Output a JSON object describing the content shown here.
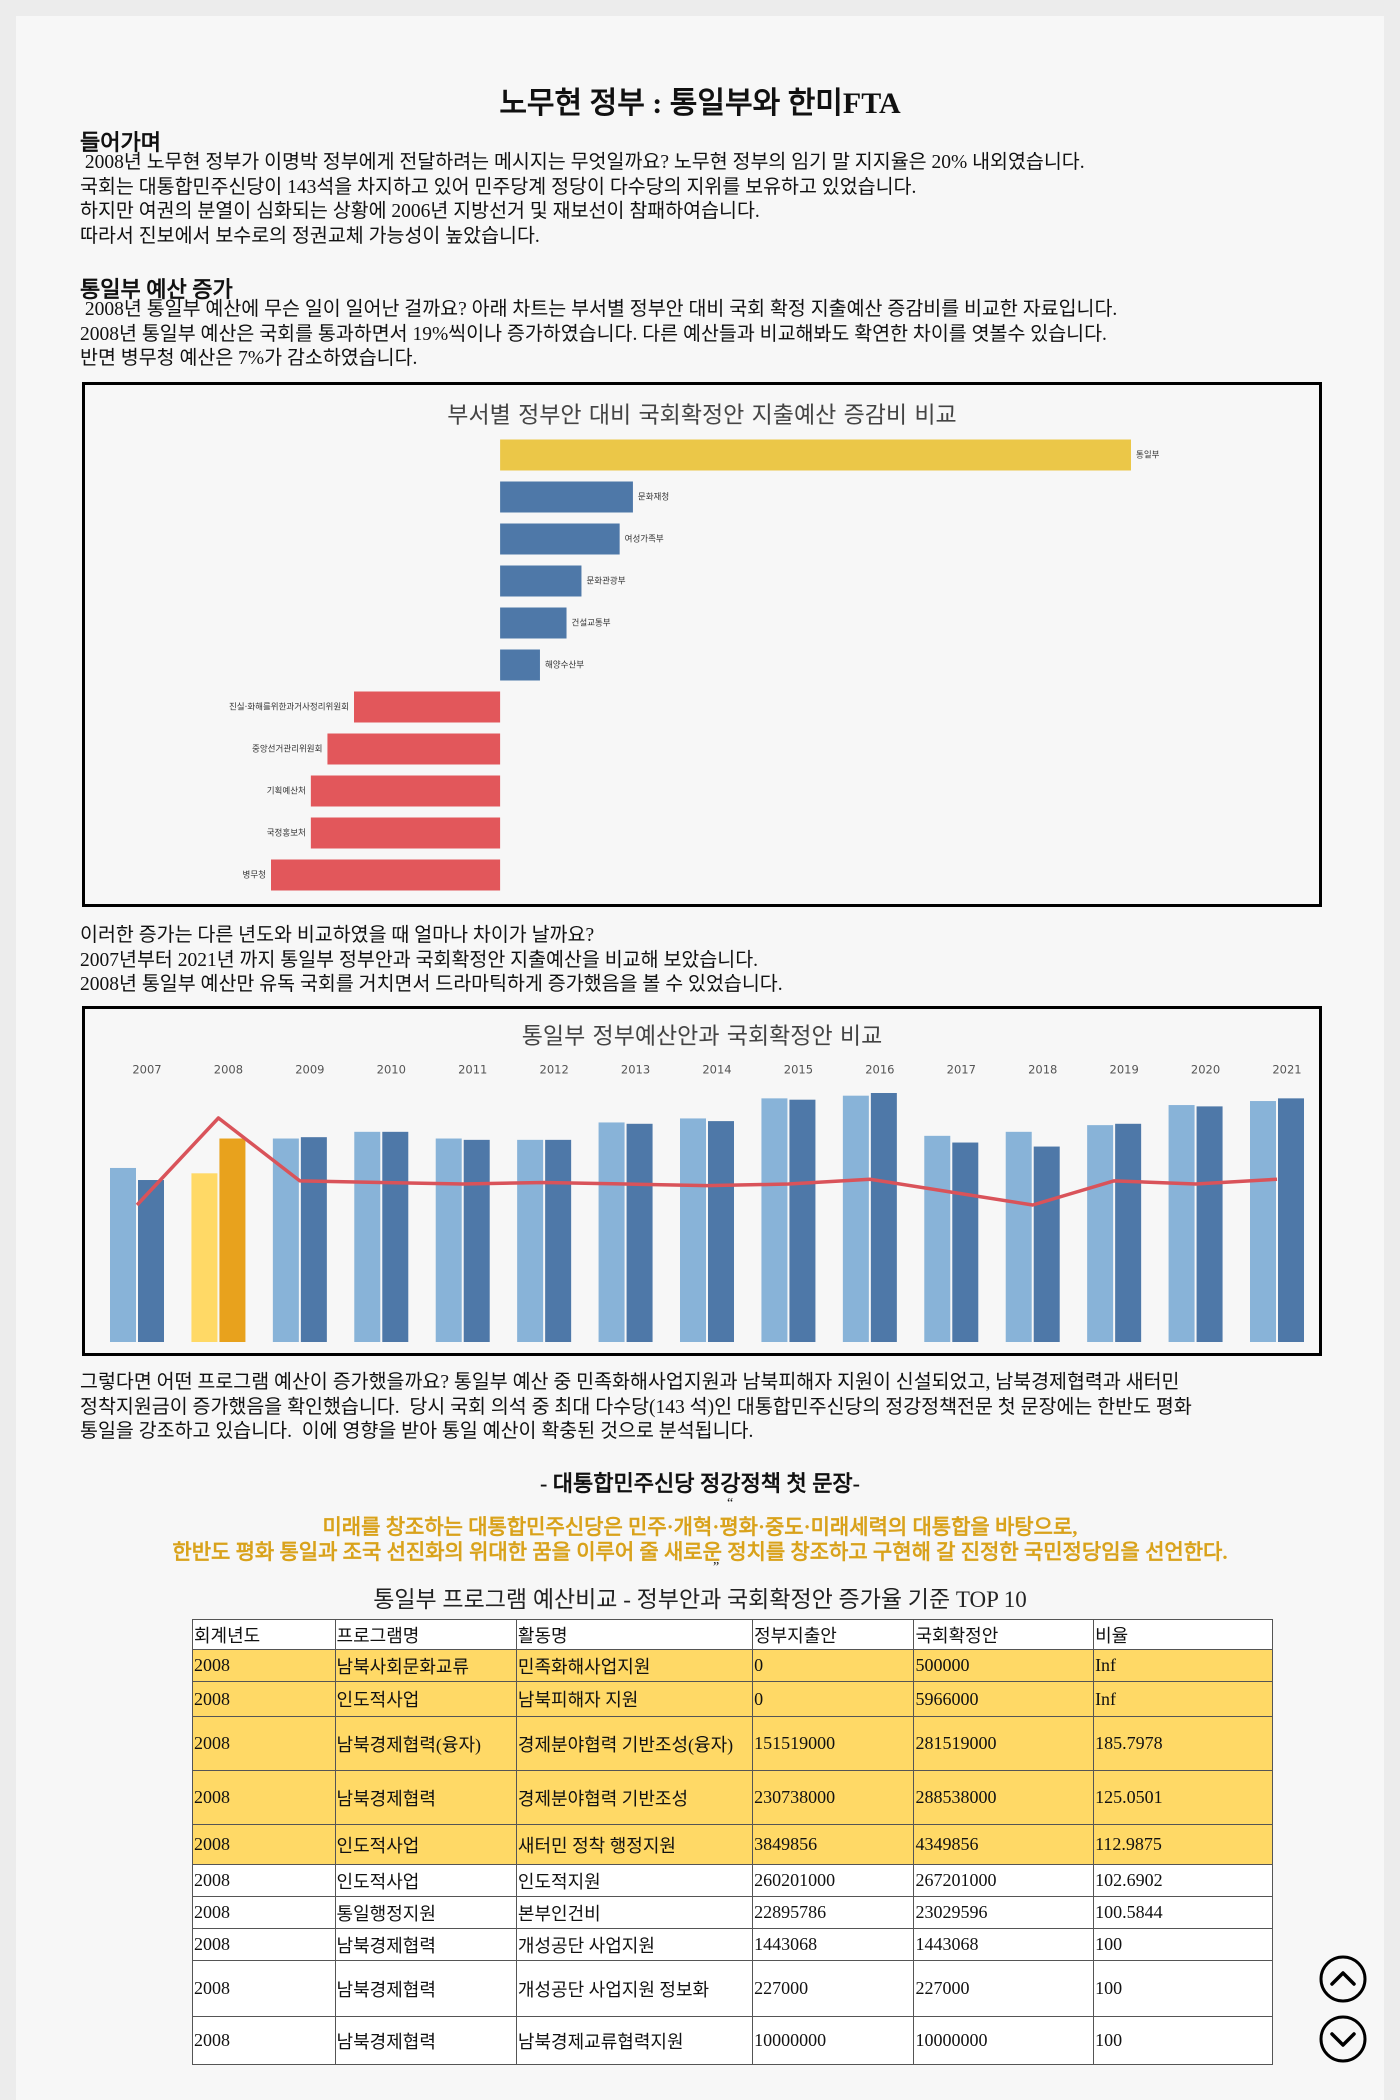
{
  "title": "노무현 정부 : 통일부와 한미FTA",
  "sections": [
    {
      "heading": "들어가며",
      "lines": [
        " 2008년 노무현 정부가 이명박 정부에게 전달하려는 메시지는 무엇일까요? 노무현 정부의 임기 말 지지율은 20% 내외였습니다.",
        "국회는 대통합민주신당이 143석을 차지하고 있어 민주당계 정당이 다수당의 지위를 보유하고 있었습니다.",
        "하지만 여권의 분열이 심화되는 상황에 2006년 지방선거 및 재보선이 참패하여습니다.",
        "따라서 진보에서 보수로의 정권교체 가능성이 높았습니다."
      ]
    },
    {
      "heading": "통일부 예산 증가",
      "lines": [
        " 2008년 통일부 예산에 무슨 일이 일어난 걸까요? 아래 차트는 부서별 정부안 대비 국회 확정 지출예산 증감비를 비교한 자료입니다.",
        "2008년 통일부 예산은 국회를 통과하면서 19%씩이나 증가하였습니다. 다른 예산들과 비교해봐도 확연한 차이를 엿볼수 있습니다.",
        "반면 병무청 예산은 7%가 감소하였습니다."
      ]
    }
  ],
  "chart_data": [
    {
      "type": "hbar",
      "title": "부서별 정부안 대비 국회확정안 지출예산 증감비 비교",
      "categories": [
        "통일부",
        "문화재청",
        "여성가족부",
        "문화관광부",
        "건설교통부",
        "해양수산부",
        "진실·화해를위한과거사정리위원회",
        "중앙선거관리위원회",
        "기획예산처",
        "국정홍보처",
        "병무청"
      ],
      "values": [
        19,
        4,
        3.6,
        2.45,
        2,
        1.2,
        -4.4,
        -5.2,
        -5.7,
        -5.7,
        -6.9
      ],
      "colors": [
        "#ebc748",
        "#4e78a8",
        "#4e78a8",
        "#4e78a8",
        "#4e78a8",
        "#4e78a8",
        "#e2575b",
        "#e2575b",
        "#e2575b",
        "#e2575b",
        "#e2575b"
      ]
    },
    {
      "type": "bar_line",
      "title": "통일부 정부예산안과 국회확정안 비교",
      "categories": [
        "2007",
        "2008",
        "2009",
        "2010",
        "2011",
        "2012",
        "2013",
        "2014",
        "2015",
        "2016",
        "2017",
        "2018",
        "2019",
        "2020",
        "2021"
      ],
      "series": [
        {
          "type": "bar",
          "values": [
            130,
            126,
            152,
            157,
            152,
            151,
            164,
            167,
            182,
            184,
            154,
            157,
            162,
            177,
            180
          ],
          "colors": [
            "#88b3d8",
            "#ffd966",
            "#88b3d8",
            "#88b3d8",
            "#88b3d8",
            "#88b3d8",
            "#88b3d8",
            "#88b3d8",
            "#88b3d8",
            "#88b3d8",
            "#88b3d8",
            "#88b3d8",
            "#88b3d8",
            "#88b3d8",
            "#88b3d8"
          ]
        },
        {
          "type": "bar",
          "values": [
            121,
            152,
            153,
            157,
            151,
            151,
            163,
            165,
            181,
            186,
            149,
            146,
            163,
            176,
            182
          ],
          "colors": [
            "#4e78a8",
            "#e8a21d",
            "#4e78a8",
            "#4e78a8",
            "#4e78a8",
            "#4e78a8",
            "#4e78a8",
            "#4e78a8",
            "#4e78a8",
            "#4e78a8",
            "#4e78a8",
            "#4e78a8",
            "#4e78a8",
            "#4e78a8",
            "#4e78a8"
          ]
        },
        {
          "type": "line",
          "color": "#d9535a",
          "values": [
            93,
            120,
            100.5,
            100,
            99.5,
            100,
            99.5,
            99,
            99.5,
            101,
            97,
            93,
            100.5,
            99.5,
            101
          ]
        }
      ]
    }
  ],
  "paragraph_2": {
    "lines": [
      "이러한 증가는 다른 년도와 비교하였을 때 얼마나 차이가 날까요?",
      "2007년부터 2021년 까지 통일부 정부안과 국회확정안 지출예산을 비교해 보았습니다.",
      "2008년 통일부 예산만 유독 국회를 거치면서 드라마틱하게 증가했음을 볼 수 있었습니다."
    ]
  },
  "paragraph_3": {
    "lines": [
      "그렇다면 어떤 프로그램 예산이 증가했을까요? 통일부 예산 중 민족화해사업지원과 남북피해자 지원이 신설되었고, 남북경제협력과 새터민",
      "정착지원금이 증가했음을 확인했습니다.  당시 국회 의석 중 최대 다수당(143 석)인 대통합민주신당의 정강정책전문 첫 문장에는 한반도 평화",
      "통일을 강조하고 있습니다.  이에 영향을 받아 통일 예산이 확충된 것으로 분석됩니다."
    ]
  },
  "quote": {
    "heading": "- 대통합민주신당 정강정책 첫 문장-",
    "open": "“",
    "close": "”",
    "lines": [
      "미래를 창조하는 대통합민주신당은 민주·개혁·평화·중도·미래세력의 대통합을 바탕으로,",
      "한반도 평화 통일과 조국 선진화의 위대한 꿈을 이루어 줄 새로운 정치를 창조하고 구현해 갈 진정한 국민정당임을 선언한다."
    ]
  },
  "table": {
    "title": "통일부 프로그램 예산비교 - 정부안과 국회확정안 증가율 기준 TOP 10",
    "columns": [
      "회계년도",
      "프로그램명",
      "활동명",
      "정부지출안",
      "국회확정안",
      "비율"
    ],
    "rows": [
      [
        "2008",
        "남북사회문화교류",
        "민족화해사업지원",
        "0",
        "500000",
        "Inf"
      ],
      [
        "2008",
        "인도적사업",
        "남북피해자 지원",
        "0",
        "5966000",
        "Inf"
      ],
      [
        "2008",
        "남북경제협력(융자)",
        "경제분야협력 기반조성(융자)",
        "151519000",
        "281519000",
        "185.7978"
      ],
      [
        "2008",
        "남북경제협력",
        "경제분야협력 기반조성",
        "230738000",
        "288538000",
        "125.0501"
      ],
      [
        "2008",
        "인도적사업",
        "새터민 정착 행정지원",
        "3849856",
        "4349856",
        "112.9875"
      ],
      [
        "2008",
        "인도적사업",
        "인도적지원",
        "260201000",
        "267201000",
        "102.6902"
      ],
      [
        "2008",
        "통일행정지원",
        "본부인건비",
        "22895786",
        "23029596",
        "100.5844"
      ],
      [
        "2008",
        "남북경제협력",
        "개성공단 사업지원",
        "1443068",
        "1443068",
        "100"
      ],
      [
        "2008",
        "남북경제협력",
        "개성공단 사업지원 정보화",
        "227000",
        "227000",
        "100"
      ],
      [
        "2008",
        "남북경제협력",
        "남북경제교류협력지원",
        "10000000",
        "10000000",
        "100"
      ]
    ],
    "highlighted_rows": [
      0,
      1,
      2,
      3,
      4
    ],
    "highlight_color": "#ffd966"
  }
}
